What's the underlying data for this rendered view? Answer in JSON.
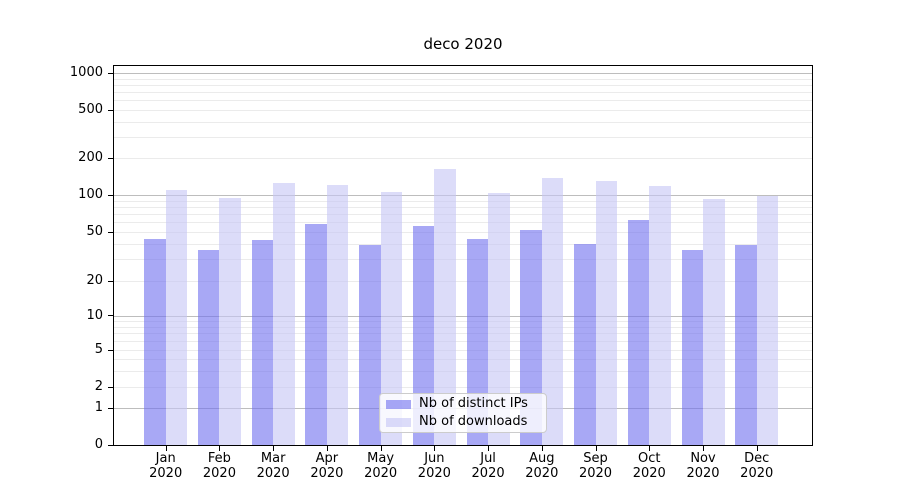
{
  "chart_data": {
    "type": "bar",
    "title": "deco 2020",
    "months": [
      "Jan",
      "Feb",
      "Mar",
      "Apr",
      "May",
      "Jun",
      "Jul",
      "Aug",
      "Sep",
      "Oct",
      "Nov",
      "Dec"
    ],
    "year": "2020",
    "series": [
      {
        "name": "Nb of distinct IPs",
        "color": "rgba(110,110,238,0.6)",
        "values": [
          44,
          36,
          43,
          58,
          39,
          56,
          44,
          52,
          40,
          63,
          36,
          39
        ]
      },
      {
        "name": "Nb of downloads",
        "color": "rgba(197,197,245,0.6)",
        "values": [
          109,
          95,
          126,
          121,
          105,
          162,
          104,
          138,
          131,
          118,
          92,
          98
        ]
      }
    ],
    "y_axis": {
      "scale": "symlog",
      "tick_values": [
        0,
        1,
        2,
        5,
        10,
        20,
        50,
        100,
        200,
        500,
        1000
      ],
      "ylim": [
        0,
        1200
      ]
    },
    "grid": {
      "minor_values": [
        2,
        3,
        4,
        5,
        6,
        7,
        8,
        9,
        20,
        30,
        40,
        50,
        60,
        70,
        80,
        90,
        200,
        300,
        400,
        500,
        600,
        700,
        800,
        900
      ],
      "major_values": [
        1,
        10,
        100,
        1000
      ],
      "minor_color": "#ebebeb",
      "major_color": "#bdbdbd"
    },
    "legend": {
      "position": "lower-center"
    }
  }
}
